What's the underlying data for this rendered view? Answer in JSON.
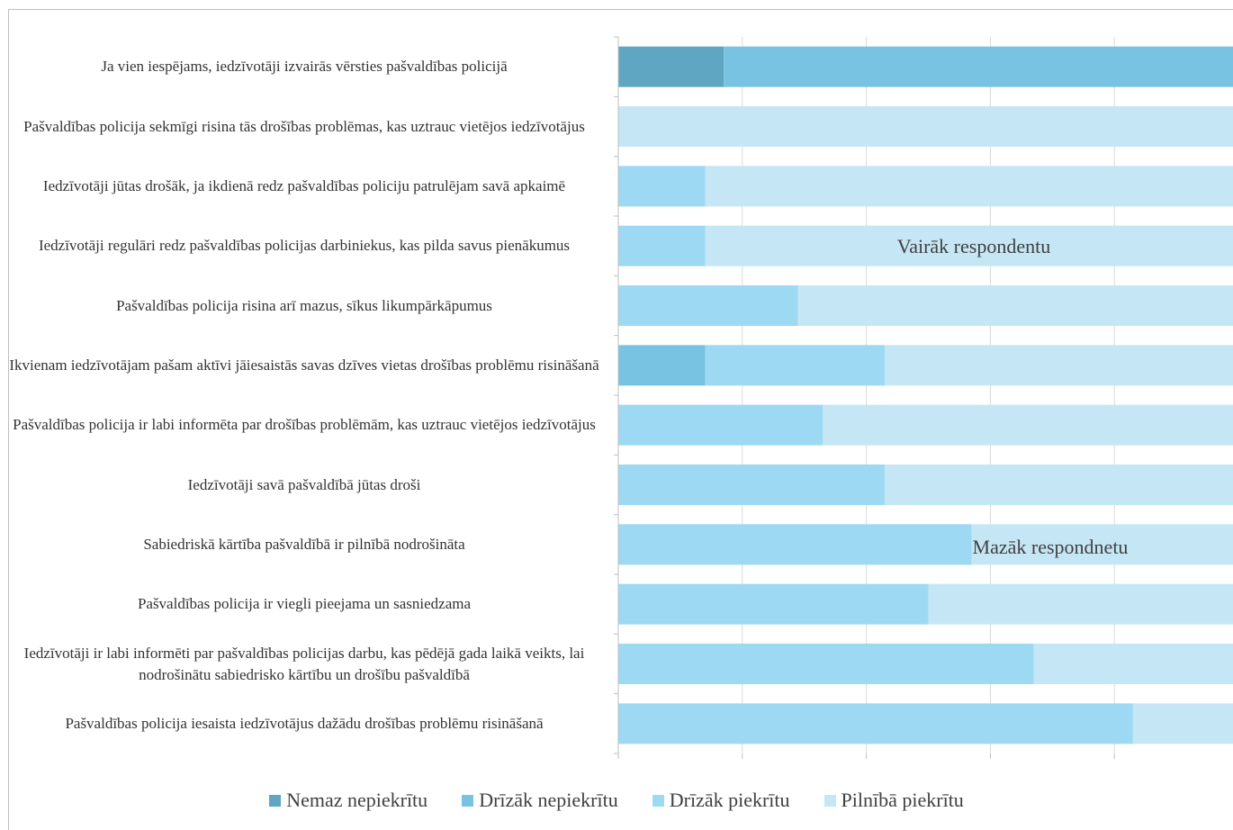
{
  "chart_data": {
    "type": "stacked_bar_horizontal",
    "categories": [
      "Ja vien iespējams, iedzīvotāji izvairās vērsties pašvaldības policijā",
      "Pašvaldības policija sekmīgi risina tās drošības problēmas, kas uztrauc vietējos iedzīvotājus",
      "Iedzīvotāji jūtas drošāk, ja ikdienā redz pašvaldības policiju patrulējam savā apkaimē",
      "Iedzīvotāji regulāri redz pašvaldības policijas darbiniekus, kas pilda savus pienākumus",
      "Pašvaldības policija risina arī mazus, sīkus likumpārkāpumus",
      "Ikvienam iedzīvotājam pašam aktīvi jāiesaistās savas dzīves vietas drošības problēmu risināšanā",
      "Pašvaldības policija ir labi informēta par drošības problēmām, kas uztrauc vietējos iedzīvotājus",
      "Iedzīvotāji savā pašvaldībā jūtas droši",
      "Sabiedriskā kārtība pašvaldībā ir pilnībā nodrošināta",
      "Pašvaldības policija ir viegli pieejama un sasniedzama",
      "Iedzīvotāji ir labi informēti par pašvaldības policijas darbu, kas pēdējā gada laikā veikts, lai nodrošinātu sabiedrisko kārtību un drošību pašvaldībā",
      "Pašvaldības policija iesaista iedzīvotājus dažādu drošības problēmu risināšanā"
    ],
    "series": [
      {
        "name": "Nemaz nepiekrītu",
        "color": "#5fa6c2",
        "values": [
          17,
          0,
          0,
          0,
          0,
          0,
          0,
          0,
          0,
          0,
          0,
          0
        ]
      },
      {
        "name": "Drīzāk nepiekrītu",
        "color": "#78c3e1",
        "values": [
          83,
          0,
          0,
          0,
          0,
          14,
          0,
          0,
          0,
          0,
          0,
          0
        ]
      },
      {
        "name": "Drīzāk piekrītu",
        "color": "#9dd9f3",
        "values": [
          0,
          0,
          14,
          14,
          29,
          29,
          33,
          43,
          57,
          50,
          67,
          83
        ]
      },
      {
        "name": "Pilnībā piekrītu",
        "color": "#c5e7f5",
        "values": [
          0,
          100,
          86,
          86,
          71,
          57,
          67,
          57,
          43,
          50,
          33,
          17
        ]
      }
    ],
    "xlim": [
      0,
      100
    ],
    "xticks": [
      0,
      20,
      40,
      60,
      80,
      100
    ],
    "grid": true,
    "annotations": [
      "Vairāk respondentu",
      "Mazāk respondnetu"
    ],
    "legend": "bottom"
  }
}
